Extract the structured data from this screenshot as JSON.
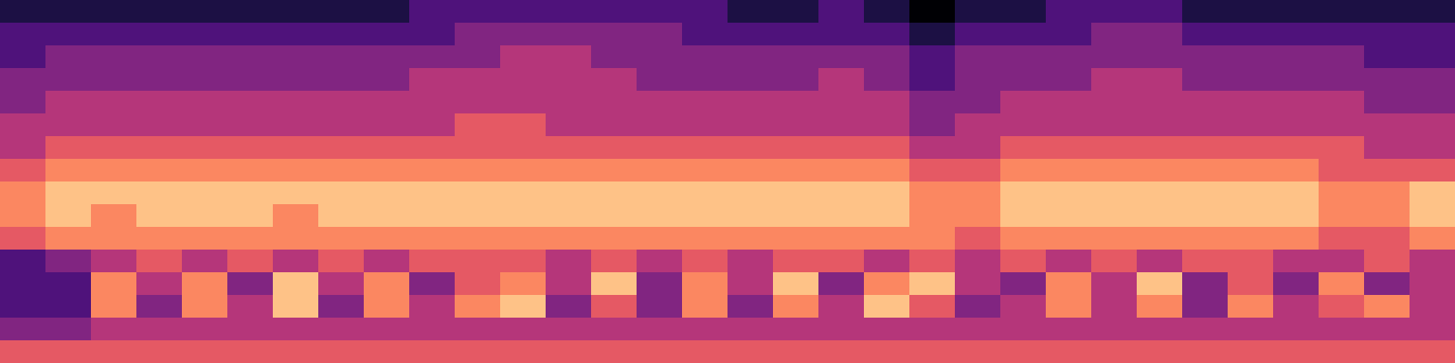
{
  "chart_data": {
    "type": "heatmap",
    "tick_labels": false,
    "cells": [
      [
        2,
        2,
        2,
        2,
        2,
        2,
        2,
        2,
        2,
        3,
        3,
        3,
        3,
        3,
        3,
        3,
        2,
        2,
        3,
        2,
        1,
        2,
        2,
        3,
        3,
        3,
        2,
        2,
        2,
        2,
        2,
        2
      ],
      [
        3,
        3,
        3,
        3,
        3,
        3,
        3,
        3,
        3,
        3,
        4,
        4,
        4,
        4,
        4,
        3,
        3,
        3,
        3,
        3,
        2,
        3,
        3,
        3,
        4,
        4,
        3,
        3,
        3,
        3,
        3,
        3
      ],
      [
        3,
        4,
        4,
        4,
        4,
        4,
        4,
        4,
        4,
        4,
        4,
        5,
        5,
        4,
        4,
        4,
        4,
        4,
        4,
        4,
        3,
        4,
        4,
        4,
        4,
        4,
        4,
        4,
        4,
        4,
        3,
        3
      ],
      [
        4,
        4,
        4,
        4,
        4,
        4,
        4,
        4,
        4,
        5,
        5,
        5,
        5,
        5,
        4,
        4,
        4,
        4,
        5,
        4,
        3,
        4,
        4,
        4,
        5,
        5,
        4,
        4,
        4,
        4,
        4,
        4
      ],
      [
        4,
        5,
        5,
        5,
        5,
        5,
        5,
        5,
        5,
        5,
        5,
        5,
        5,
        5,
        5,
        5,
        5,
        5,
        5,
        5,
        4,
        4,
        5,
        5,
        5,
        5,
        5,
        5,
        5,
        5,
        4,
        4
      ],
      [
        5,
        5,
        5,
        5,
        5,
        5,
        5,
        5,
        5,
        5,
        6,
        6,
        5,
        5,
        5,
        5,
        5,
        5,
        5,
        5,
        4,
        5,
        5,
        5,
        5,
        5,
        5,
        5,
        5,
        5,
        5,
        5
      ],
      [
        5,
        6,
        6,
        6,
        6,
        6,
        6,
        6,
        6,
        6,
        6,
        6,
        6,
        6,
        6,
        6,
        6,
        6,
        6,
        6,
        5,
        5,
        6,
        6,
        6,
        6,
        6,
        6,
        6,
        6,
        5,
        5
      ],
      [
        6,
        7,
        7,
        7,
        7,
        7,
        7,
        7,
        7,
        7,
        7,
        7,
        7,
        7,
        7,
        7,
        7,
        7,
        7,
        7,
        6,
        6,
        7,
        7,
        7,
        7,
        7,
        7,
        7,
        6,
        6,
        6
      ],
      [
        7,
        8,
        8,
        8,
        8,
        8,
        8,
        8,
        8,
        8,
        8,
        8,
        8,
        8,
        8,
        8,
        8,
        8,
        8,
        8,
        7,
        7,
        8,
        8,
        8,
        8,
        8,
        8,
        8,
        7,
        7,
        8
      ],
      [
        7,
        8,
        7,
        8,
        8,
        8,
        7,
        8,
        8,
        8,
        8,
        8,
        8,
        8,
        8,
        8,
        8,
        8,
        8,
        8,
        7,
        7,
        8,
        8,
        8,
        8,
        8,
        8,
        8,
        7,
        7,
        8
      ],
      [
        6,
        7,
        7,
        7,
        7,
        7,
        7,
        7,
        7,
        7,
        7,
        7,
        7,
        7,
        7,
        7,
        7,
        7,
        7,
        7,
        7,
        6,
        7,
        7,
        7,
        7,
        7,
        7,
        7,
        6,
        6,
        7
      ],
      [
        3,
        4,
        5,
        6,
        5,
        6,
        5,
        6,
        5,
        6,
        6,
        6,
        5,
        6,
        5,
        6,
        5,
        6,
        6,
        5,
        6,
        5,
        6,
        5,
        6,
        5,
        6,
        6,
        5,
        5,
        6,
        5
      ],
      [
        3,
        3,
        7,
        5,
        7,
        4,
        8,
        5,
        7,
        4,
        6,
        7,
        5,
        8,
        4,
        7,
        5,
        8,
        4,
        7,
        8,
        5,
        4,
        7,
        5,
        8,
        4,
        6,
        4,
        7,
        4,
        5
      ],
      [
        3,
        3,
        7,
        4,
        7,
        5,
        8,
        4,
        7,
        5,
        7,
        8,
        4,
        6,
        4,
        7,
        4,
        7,
        5,
        8,
        6,
        4,
        5,
        7,
        5,
        7,
        4,
        7,
        5,
        6,
        7,
        5
      ],
      [
        4,
        4,
        5,
        5,
        5,
        5,
        5,
        5,
        5,
        5,
        5,
        5,
        5,
        5,
        5,
        5,
        5,
        5,
        5,
        5,
        5,
        5,
        5,
        5,
        5,
        5,
        5,
        5,
        5,
        5,
        5,
        5
      ],
      [
        6,
        6,
        6,
        6,
        6,
        6,
        6,
        6,
        6,
        6,
        6,
        6,
        6,
        6,
        6,
        6,
        6,
        6,
        6,
        6,
        6,
        6,
        6,
        6,
        6,
        6,
        6,
        6,
        6,
        6,
        6,
        6
      ]
    ]
  }
}
